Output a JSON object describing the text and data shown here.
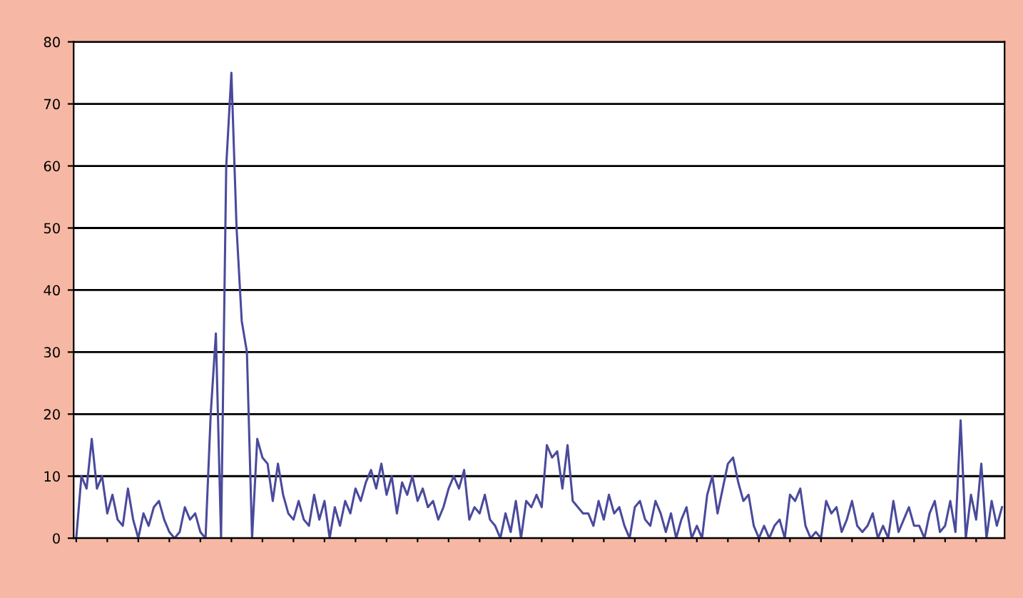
{
  "chart_data": {
    "type": "line",
    "categories": [
      null,
      null,
      null,
      null,
      null,
      null,
      null,
      null,
      null,
      null,
      null,
      null,
      null,
      null,
      null,
      null,
      null,
      null,
      null,
      null,
      null,
      null,
      null,
      null,
      null,
      null,
      null,
      null,
      null,
      null,
      null,
      null,
      null,
      null,
      null,
      null,
      null,
      null,
      null,
      null,
      null,
      null,
      null,
      null,
      null,
      null,
      null,
      null,
      null,
      null,
      null,
      null,
      null,
      null,
      null,
      null,
      null,
      null,
      null,
      null,
      null,
      null,
      null,
      null,
      null,
      null,
      null,
      null,
      null,
      null,
      null,
      null,
      null,
      null,
      null,
      null,
      null,
      null,
      null,
      null,
      null,
      null,
      null,
      null,
      null,
      null,
      null,
      null,
      null,
      null,
      null,
      null,
      null,
      null,
      null,
      null,
      null,
      null,
      null,
      null,
      null,
      null,
      null,
      null,
      null,
      null,
      null,
      null,
      null,
      null,
      null,
      null,
      null,
      null,
      null,
      null,
      null,
      null,
      null,
      null,
      null,
      null,
      null,
      null,
      null,
      null,
      null,
      null,
      null,
      null,
      null,
      null,
      null,
      null,
      null,
      null,
      null,
      null,
      null,
      null,
      null,
      null,
      null,
      null,
      null,
      null,
      null,
      null,
      null,
      null,
      null,
      null,
      null,
      null,
      null,
      null,
      null,
      null,
      null,
      null,
      null,
      null,
      null,
      null,
      null,
      null,
      null,
      null,
      null,
      null,
      null,
      null,
      null,
      null,
      null,
      null,
      null,
      null,
      null,
      null
    ],
    "series": [
      {
        "color": "#4a4a9c",
        "values": [
          0,
          10,
          8,
          16,
          8,
          10,
          4,
          7,
          3,
          2,
          8,
          3,
          0,
          4,
          2,
          5,
          6,
          3,
          1,
          0,
          1,
          5,
          3,
          4,
          1,
          0,
          20,
          33,
          0,
          60,
          75,
          50,
          35,
          30,
          0,
          16,
          13,
          12,
          6,
          12,
          7,
          4,
          3,
          6,
          3,
          2,
          7,
          3,
          6,
          0,
          5,
          2,
          6,
          4,
          8,
          6,
          9,
          11,
          8,
          12,
          7,
          10,
          4,
          9,
          7,
          10,
          6,
          8,
          5,
          6,
          3,
          5,
          8,
          10,
          8,
          11,
          3,
          5,
          4,
          7,
          3,
          2,
          0,
          4,
          1,
          6,
          0,
          6,
          5,
          7,
          5,
          15,
          13,
          14,
          8,
          15,
          6,
          5,
          4,
          4,
          2,
          6,
          3,
          7,
          4,
          5,
          2,
          0,
          5,
          6,
          3,
          2,
          6,
          4,
          1,
          4,
          0,
          3,
          5,
          0,
          2,
          0,
          7,
          10,
          4,
          8,
          12,
          13,
          9,
          6,
          7,
          2,
          0,
          2,
          0,
          2,
          3,
          0,
          7,
          6,
          8,
          2,
          0,
          1,
          0,
          6,
          4,
          5,
          1,
          3,
          6,
          2,
          1,
          2,
          4,
          0,
          2,
          0,
          6,
          1,
          3,
          5,
          2,
          2,
          0,
          4,
          6,
          1,
          2,
          6,
          1,
          19,
          0,
          7,
          3,
          12,
          0,
          6,
          2,
          5
        ]
      }
    ],
    "ylim": [
      0,
      80
    ],
    "yticks": [
      0,
      10,
      20,
      30,
      40,
      50,
      60,
      70,
      80
    ],
    "grid": "y",
    "tick_labels": "y",
    "legend": false,
    "marker": "none",
    "line_style": "solid"
  }
}
